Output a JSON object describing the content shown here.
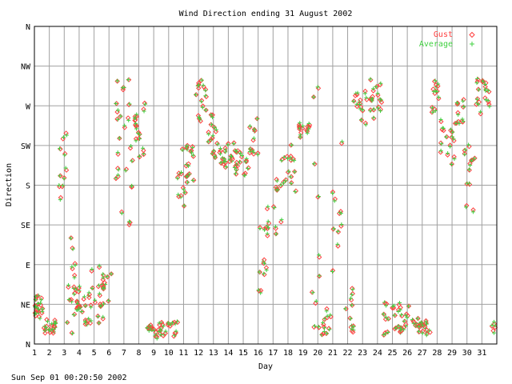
{
  "chart_data": {
    "type": "scatter",
    "title": "Wind Direction ending 31 August 2002",
    "xlabel": "Day",
    "ylabel": "Direction",
    "footer": "Sun Sep 01 00:20:50 2002",
    "x_ticks": [
      "1",
      "2",
      "3",
      "4",
      "5",
      "6",
      "7",
      "8",
      "9",
      "10",
      "11",
      "12",
      "13",
      "14",
      "15",
      "16",
      "17",
      "18",
      "19",
      "20",
      "21",
      "22",
      "23",
      "24",
      "25",
      "26",
      "27",
      "28",
      "29",
      "30",
      "31"
    ],
    "xlim": [
      1,
      32
    ],
    "y_ticks": [
      "N",
      "NE",
      "E",
      "SE",
      "S",
      "SW",
      "W",
      "NW",
      "N"
    ],
    "ylim": [
      0,
      360
    ],
    "grid": true,
    "legend": "top-right",
    "series": [
      {
        "name": "Gust",
        "marker": "diamond",
        "color": "#ff4040"
      },
      {
        "name": "Average",
        "marker": "plus",
        "color": "#40d040"
      }
    ],
    "segments": [
      [
        1.0,
        1.6,
        30,
        58,
        16
      ],
      [
        1.6,
        2.6,
        12,
        32,
        16
      ],
      [
        2.6,
        3.2,
        160,
        240,
        10
      ],
      [
        3.2,
        3.8,
        8,
        122,
        14
      ],
      [
        3.8,
        4.4,
        28,
        70,
        12
      ],
      [
        4.4,
        5.6,
        15,
        90,
        22
      ],
      [
        5.6,
        6.2,
        35,
        80,
        10
      ],
      [
        6.2,
        6.8,
        180,
        305,
        10
      ],
      [
        6.8,
        7.6,
        130,
        300,
        14
      ],
      [
        7.6,
        8.4,
        210,
        285,
        16
      ],
      [
        8.4,
        9.0,
        10,
        25,
        8
      ],
      [
        9.0,
        10.6,
        8,
        25,
        22
      ],
      [
        10.6,
        11.2,
        150,
        225,
        12
      ],
      [
        11.2,
        11.8,
        180,
        230,
        12
      ],
      [
        11.8,
        12.6,
        240,
        300,
        14
      ],
      [
        12.6,
        13.4,
        205,
        260,
        14
      ],
      [
        13.4,
        14.4,
        200,
        230,
        16
      ],
      [
        14.4,
        15.4,
        185,
        225,
        16
      ],
      [
        15.4,
        16.0,
        210,
        260,
        10
      ],
      [
        16.0,
        16.6,
        60,
        150,
        10
      ],
      [
        16.6,
        17.6,
        120,
        190,
        14
      ],
      [
        17.6,
        18.6,
        170,
        230,
        14
      ],
      [
        18.6,
        19.6,
        230,
        250,
        12
      ],
      [
        19.6,
        20.2,
        10,
        290,
        10
      ],
      [
        20.2,
        21.0,
        5,
        40,
        10
      ],
      [
        21.0,
        21.6,
        40,
        240,
        10
      ],
      [
        21.6,
        22.4,
        10,
        75,
        10
      ],
      [
        22.4,
        23.6,
        250,
        300,
        16
      ],
      [
        23.6,
        24.4,
        255,
        300,
        12
      ],
      [
        24.4,
        25.2,
        10,
        50,
        12
      ],
      [
        25.2,
        26.2,
        10,
        45,
        16
      ],
      [
        26.2,
        27.0,
        10,
        30,
        12
      ],
      [
        27.0,
        27.6,
        5,
        30,
        8
      ],
      [
        27.6,
        28.2,
        260,
        300,
        10
      ],
      [
        28.2,
        29.2,
        200,
        260,
        14
      ],
      [
        29.2,
        29.8,
        250,
        280,
        10
      ],
      [
        29.8,
        30.6,
        150,
        230,
        12
      ],
      [
        30.6,
        31.6,
        260,
        300,
        16
      ],
      [
        31.6,
        32.0,
        15,
        25,
        4
      ]
    ]
  }
}
